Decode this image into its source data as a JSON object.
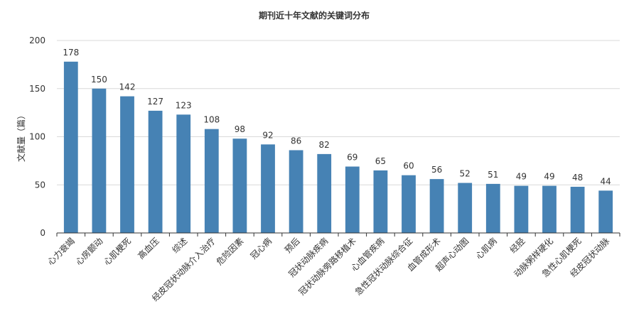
{
  "chart_data": {
    "type": "bar",
    "title": "期刊近十年文献的关键词分布",
    "xlabel": "",
    "ylabel": "文献量（篇）",
    "ylim": [
      0,
      200
    ],
    "yticks": [
      0,
      50,
      100,
      150,
      200
    ],
    "grid": true,
    "bar_color": "#4682b4",
    "categories": [
      "心力衰竭",
      "心房颤动",
      "心肌梗死",
      "高血压",
      "综述",
      "经皮冠状动脉介入治疗",
      "危险因素",
      "冠心病",
      "预后",
      "冠状动脉疾病",
      "冠状动脉旁路移植术",
      "心血管疾病",
      "急性冠状动脉综合征",
      "血管成形术",
      "超声心动图",
      "心肌病",
      "经胫",
      "动脉粥样硬化",
      "急性心肌梗死",
      "经皮冠状动脉"
    ],
    "values": [
      178,
      150,
      142,
      127,
      123,
      108,
      98,
      92,
      86,
      82,
      69,
      65,
      60,
      56,
      52,
      51,
      49,
      49,
      48,
      44
    ]
  }
}
